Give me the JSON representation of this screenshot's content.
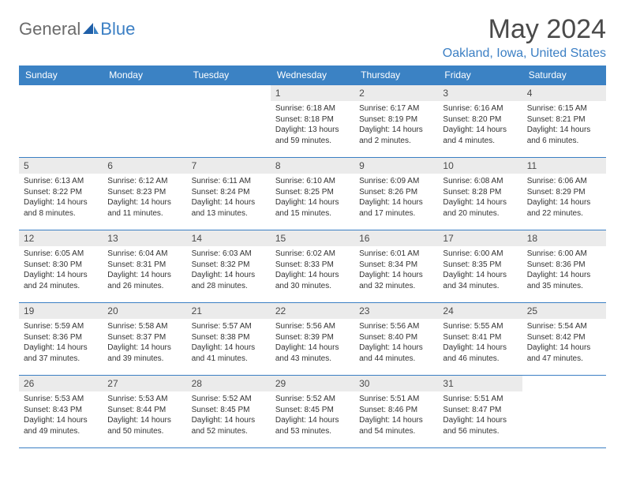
{
  "logo": {
    "text1": "General",
    "text2": "Blue"
  },
  "title": "May 2024",
  "location": "Oakland, Iowa, United States",
  "weekdays": [
    "Sunday",
    "Monday",
    "Tuesday",
    "Wednesday",
    "Thursday",
    "Friday",
    "Saturday"
  ],
  "colors": {
    "header_bg": "#3b82c4",
    "header_text": "#ffffff",
    "accent": "#3b7fc4",
    "daynum_bg": "#ebebeb",
    "body_text": "#333333",
    "title_text": "#4a4a4a"
  },
  "typography": {
    "title_fontsize": 34,
    "location_fontsize": 16,
    "weekday_fontsize": 12,
    "daynum_fontsize": 12,
    "body_fontsize": 10
  },
  "layout": {
    "columns": 7,
    "rows": 5,
    "month_start_weekday_index": 3
  },
  "days": [
    {
      "n": 1,
      "sunrise": "6:18 AM",
      "sunset": "8:18 PM",
      "daylight": "13 hours and 59 minutes."
    },
    {
      "n": 2,
      "sunrise": "6:17 AM",
      "sunset": "8:19 PM",
      "daylight": "14 hours and 2 minutes."
    },
    {
      "n": 3,
      "sunrise": "6:16 AM",
      "sunset": "8:20 PM",
      "daylight": "14 hours and 4 minutes."
    },
    {
      "n": 4,
      "sunrise": "6:15 AM",
      "sunset": "8:21 PM",
      "daylight": "14 hours and 6 minutes."
    },
    {
      "n": 5,
      "sunrise": "6:13 AM",
      "sunset": "8:22 PM",
      "daylight": "14 hours and 8 minutes."
    },
    {
      "n": 6,
      "sunrise": "6:12 AM",
      "sunset": "8:23 PM",
      "daylight": "14 hours and 11 minutes."
    },
    {
      "n": 7,
      "sunrise": "6:11 AM",
      "sunset": "8:24 PM",
      "daylight": "14 hours and 13 minutes."
    },
    {
      "n": 8,
      "sunrise": "6:10 AM",
      "sunset": "8:25 PM",
      "daylight": "14 hours and 15 minutes."
    },
    {
      "n": 9,
      "sunrise": "6:09 AM",
      "sunset": "8:26 PM",
      "daylight": "14 hours and 17 minutes."
    },
    {
      "n": 10,
      "sunrise": "6:08 AM",
      "sunset": "8:28 PM",
      "daylight": "14 hours and 20 minutes."
    },
    {
      "n": 11,
      "sunrise": "6:06 AM",
      "sunset": "8:29 PM",
      "daylight": "14 hours and 22 minutes."
    },
    {
      "n": 12,
      "sunrise": "6:05 AM",
      "sunset": "8:30 PM",
      "daylight": "14 hours and 24 minutes."
    },
    {
      "n": 13,
      "sunrise": "6:04 AM",
      "sunset": "8:31 PM",
      "daylight": "14 hours and 26 minutes."
    },
    {
      "n": 14,
      "sunrise": "6:03 AM",
      "sunset": "8:32 PM",
      "daylight": "14 hours and 28 minutes."
    },
    {
      "n": 15,
      "sunrise": "6:02 AM",
      "sunset": "8:33 PM",
      "daylight": "14 hours and 30 minutes."
    },
    {
      "n": 16,
      "sunrise": "6:01 AM",
      "sunset": "8:34 PM",
      "daylight": "14 hours and 32 minutes."
    },
    {
      "n": 17,
      "sunrise": "6:00 AM",
      "sunset": "8:35 PM",
      "daylight": "14 hours and 34 minutes."
    },
    {
      "n": 18,
      "sunrise": "6:00 AM",
      "sunset": "8:36 PM",
      "daylight": "14 hours and 35 minutes."
    },
    {
      "n": 19,
      "sunrise": "5:59 AM",
      "sunset": "8:36 PM",
      "daylight": "14 hours and 37 minutes."
    },
    {
      "n": 20,
      "sunrise": "5:58 AM",
      "sunset": "8:37 PM",
      "daylight": "14 hours and 39 minutes."
    },
    {
      "n": 21,
      "sunrise": "5:57 AM",
      "sunset": "8:38 PM",
      "daylight": "14 hours and 41 minutes."
    },
    {
      "n": 22,
      "sunrise": "5:56 AM",
      "sunset": "8:39 PM",
      "daylight": "14 hours and 43 minutes."
    },
    {
      "n": 23,
      "sunrise": "5:56 AM",
      "sunset": "8:40 PM",
      "daylight": "14 hours and 44 minutes."
    },
    {
      "n": 24,
      "sunrise": "5:55 AM",
      "sunset": "8:41 PM",
      "daylight": "14 hours and 46 minutes."
    },
    {
      "n": 25,
      "sunrise": "5:54 AM",
      "sunset": "8:42 PM",
      "daylight": "14 hours and 47 minutes."
    },
    {
      "n": 26,
      "sunrise": "5:53 AM",
      "sunset": "8:43 PM",
      "daylight": "14 hours and 49 minutes."
    },
    {
      "n": 27,
      "sunrise": "5:53 AM",
      "sunset": "8:44 PM",
      "daylight": "14 hours and 50 minutes."
    },
    {
      "n": 28,
      "sunrise": "5:52 AM",
      "sunset": "8:45 PM",
      "daylight": "14 hours and 52 minutes."
    },
    {
      "n": 29,
      "sunrise": "5:52 AM",
      "sunset": "8:45 PM",
      "daylight": "14 hours and 53 minutes."
    },
    {
      "n": 30,
      "sunrise": "5:51 AM",
      "sunset": "8:46 PM",
      "daylight": "14 hours and 54 minutes."
    },
    {
      "n": 31,
      "sunrise": "5:51 AM",
      "sunset": "8:47 PM",
      "daylight": "14 hours and 56 minutes."
    }
  ],
  "labels": {
    "sunrise": "Sunrise:",
    "sunset": "Sunset:",
    "daylight": "Daylight:"
  }
}
